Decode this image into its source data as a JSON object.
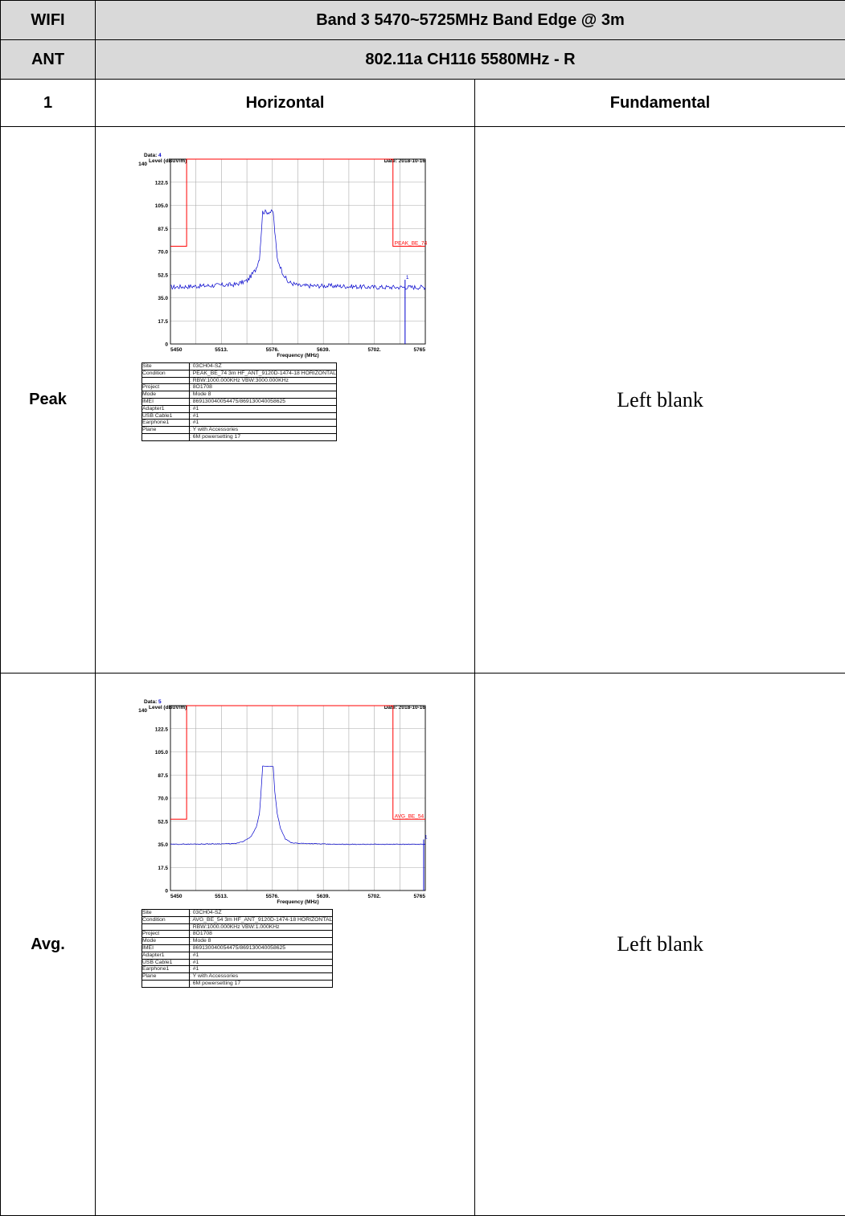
{
  "header": {
    "wifi_label": "WIFI",
    "band_title": "Band 3 5470~5725MHz Band Edge @ 3m",
    "ant_label": "ANT",
    "ant_value": "802.11a CH116 5580MHz - R",
    "num_label": "1",
    "col_horizontal": "Horizontal",
    "col_fundamental": "Fundamental"
  },
  "rows": [
    {
      "label": "Peak",
      "blank_text": "Left blank",
      "plot": {
        "data_label": "Data:",
        "data_num": "4",
        "date": "Date: 2018-10-16",
        "limit_label": "PEAK_BE_74",
        "marker_label": "1",
        "info": [
          {
            "k": "Site",
            "v": ": 03CH04-SZ"
          },
          {
            "k": "Condition",
            "v": ": PEAK_BE_74 3m HF_ANT_9120D-1474-18 HORIZONTAL"
          },
          {
            "k": "",
            "v": ": RBW:1000.000KHz VBW:3000.000KHz"
          },
          {
            "k": "Project",
            "v": ": 8O1708"
          },
          {
            "k": "Mode",
            "v": ": Mode 8"
          },
          {
            "k": "IMEI",
            "v": ": 869130040054475/869130040058625"
          },
          {
            "k": "Adapter1",
            "v": ": #1"
          },
          {
            "k": "USB Cable1",
            "v": ": #1"
          },
          {
            "k": "Earphone1",
            "v": ": #1"
          },
          {
            "k": "Plane",
            "v": ": Y with  Accessories"
          },
          {
            "k": "",
            "v": ": 6M  powersetting  17"
          }
        ]
      }
    },
    {
      "label": "Avg.",
      "blank_text": "Left blank",
      "plot": {
        "data_label": "Data:",
        "data_num": "5",
        "date": "Date: 2018-10-16",
        "limit_label": "AVG_BE_54",
        "marker_label": "1",
        "info": [
          {
            "k": "Site",
            "v": ": 03CH04-SZ"
          },
          {
            "k": "Condition",
            "v": ": AVG_BE_54 3m HF_ANT_9120D-1474-18 HORIZONTAL"
          },
          {
            "k": "",
            "v": ": RBW:1000.000KHz VBW:1.000KHz"
          },
          {
            "k": "Project",
            "v": ": 8O1708"
          },
          {
            "k": "Mode",
            "v": ": Mode 8"
          },
          {
            "k": "IMEI",
            "v": ": 869130040054475/869130040058625"
          },
          {
            "k": "Adapter1",
            "v": ": #1"
          },
          {
            "k": "USB Cable1",
            "v": ": #1"
          },
          {
            "k": "Earphone1",
            "v": ": #1"
          },
          {
            "k": "Plane",
            "v": ": Y with  Accessories"
          },
          {
            "k": "",
            "v": ": 6M  powersetting  17"
          }
        ]
      }
    }
  ],
  "chart_data": [
    {
      "type": "line",
      "ylabel": "Level (dBuV/m)",
      "xlabel": "Frequency (MHz)",
      "ylim": [
        0,
        140
      ],
      "xlim": [
        5450,
        5765
      ],
      "yticks": [
        "140",
        "122.5",
        "105.0",
        "87.5",
        "70.0",
        "52.5",
        "35.0",
        "17.5",
        "0"
      ],
      "xticks": [
        "5450",
        "5513.",
        "5576.",
        "5639.",
        "5702.",
        "5765"
      ],
      "grid": true,
      "limit_line": {
        "name": "PEAK_BE_74",
        "color": "#ff0000",
        "points": [
          [
            5450,
            74
          ],
          [
            5470,
            74
          ],
          [
            5470,
            140
          ],
          [
            5725,
            140
          ],
          [
            5725,
            74
          ],
          [
            5765,
            74
          ]
        ]
      },
      "series": [
        {
          "color": "#0000cc",
          "points": [
            [
              5450,
              43
            ],
            [
              5490,
              44
            ],
            [
              5530,
              45
            ],
            [
              5545,
              48
            ],
            [
              5555,
              56
            ],
            [
              5560,
              65
            ],
            [
              5562,
              82
            ],
            [
              5564,
              100
            ],
            [
              5577,
              100
            ],
            [
              5579,
              85
            ],
            [
              5582,
              65
            ],
            [
              5588,
              55
            ],
            [
              5595,
              47
            ],
            [
              5610,
              44
            ],
            [
              5650,
              44
            ],
            [
              5700,
              43
            ],
            [
              5730,
              43
            ],
            [
              5765,
              43
            ]
          ]
        }
      ],
      "marker": {
        "label": "1",
        "x": 5740,
        "y": 45
      }
    },
    {
      "type": "line",
      "ylabel": "Level (dBuV/m)",
      "xlabel": "Frequency (MHz)",
      "ylim": [
        0,
        140
      ],
      "xlim": [
        5450,
        5765
      ],
      "yticks": [
        "140",
        "122.5",
        "105.0",
        "87.5",
        "70.0",
        "52.5",
        "35.0",
        "17.5",
        "0"
      ],
      "xticks": [
        "5450",
        "5513.",
        "5576.",
        "5639.",
        "5702.",
        "5765"
      ],
      "grid": true,
      "limit_line": {
        "name": "AVG_BE_54",
        "color": "#ff0000",
        "points": [
          [
            5450,
            54
          ],
          [
            5470,
            54
          ],
          [
            5470,
            140
          ],
          [
            5725,
            140
          ],
          [
            5725,
            54
          ],
          [
            5765,
            54
          ]
        ]
      },
      "series": [
        {
          "color": "#0000cc",
          "points": [
            [
              5450,
              35
            ],
            [
              5530,
              35.5
            ],
            [
              5540,
              37
            ],
            [
              5550,
              41
            ],
            [
              5556,
              48
            ],
            [
              5560,
              58
            ],
            [
              5562,
              75
            ],
            [
              5564,
              94
            ],
            [
              5577,
              94
            ],
            [
              5579,
              75
            ],
            [
              5582,
              58
            ],
            [
              5586,
              47
            ],
            [
              5592,
              39
            ],
            [
              5600,
              36
            ],
            [
              5650,
              35
            ],
            [
              5700,
              35
            ],
            [
              5750,
              35
            ],
            [
              5765,
              35
            ]
          ]
        }
      ],
      "marker": {
        "label": "1",
        "x": 5763,
        "y": 35
      }
    }
  ]
}
